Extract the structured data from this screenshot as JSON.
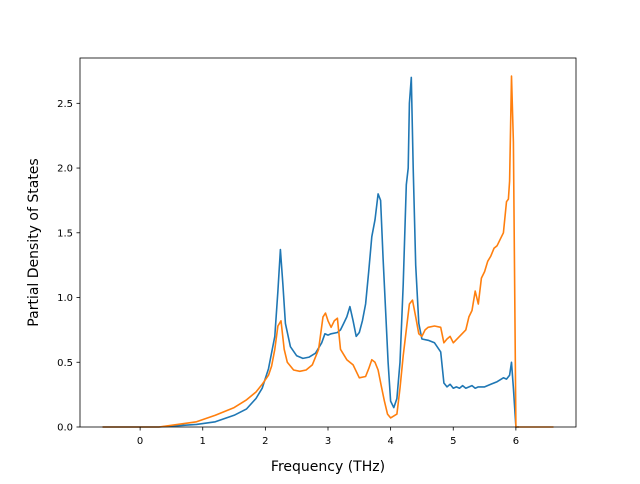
{
  "chart_data": {
    "type": "line",
    "title": "",
    "xlabel": "Frequency (THz)",
    "ylabel": "Partial Density of States",
    "xlim": [
      -0.96,
      6.96
    ],
    "ylim": [
      0.0,
      2.85
    ],
    "xticks": [
      0,
      1,
      2,
      3,
      4,
      5,
      6
    ],
    "xtick_labels": [
      "0",
      "1",
      "2",
      "3",
      "4",
      "5",
      "6"
    ],
    "yticks": [
      0.0,
      0.5,
      1.0,
      1.5,
      2.0,
      2.5
    ],
    "ytick_labels": [
      "0.0",
      "0.5",
      "1.0",
      "1.5",
      "2.0",
      "2.5"
    ],
    "grid": false,
    "legend": null,
    "series": [
      {
        "color": "#1f77b4",
        "points": [
          [
            -0.6,
            0.0
          ],
          [
            0.0,
            0.0
          ],
          [
            0.3,
            0.0
          ],
          [
            0.6,
            0.01
          ],
          [
            0.9,
            0.02
          ],
          [
            1.2,
            0.04
          ],
          [
            1.5,
            0.09
          ],
          [
            1.7,
            0.14
          ],
          [
            1.85,
            0.22
          ],
          [
            1.95,
            0.3
          ],
          [
            2.05,
            0.45
          ],
          [
            2.15,
            0.7
          ],
          [
            2.2,
            1.05
          ],
          [
            2.24,
            1.37
          ],
          [
            2.28,
            1.1
          ],
          [
            2.32,
            0.8
          ],
          [
            2.4,
            0.62
          ],
          [
            2.5,
            0.55
          ],
          [
            2.6,
            0.53
          ],
          [
            2.7,
            0.54
          ],
          [
            2.8,
            0.57
          ],
          [
            2.9,
            0.65
          ],
          [
            2.95,
            0.72
          ],
          [
            3.0,
            0.71
          ],
          [
            3.05,
            0.72
          ],
          [
            3.15,
            0.73
          ],
          [
            3.2,
            0.75
          ],
          [
            3.25,
            0.8
          ],
          [
            3.3,
            0.85
          ],
          [
            3.35,
            0.93
          ],
          [
            3.4,
            0.82
          ],
          [
            3.45,
            0.7
          ],
          [
            3.5,
            0.73
          ],
          [
            3.55,
            0.82
          ],
          [
            3.6,
            0.95
          ],
          [
            3.65,
            1.2
          ],
          [
            3.7,
            1.47
          ],
          [
            3.75,
            1.6
          ],
          [
            3.8,
            1.8
          ],
          [
            3.84,
            1.75
          ],
          [
            3.88,
            1.3
          ],
          [
            3.92,
            0.9
          ],
          [
            3.96,
            0.5
          ],
          [
            4.0,
            0.2
          ],
          [
            4.05,
            0.15
          ],
          [
            4.1,
            0.22
          ],
          [
            4.15,
            0.5
          ],
          [
            4.2,
            1.1
          ],
          [
            4.25,
            1.87
          ],
          [
            4.28,
            2.0
          ],
          [
            4.3,
            2.5
          ],
          [
            4.33,
            2.7
          ],
          [
            4.36,
            2.0
          ],
          [
            4.4,
            1.25
          ],
          [
            4.45,
            0.8
          ],
          [
            4.5,
            0.68
          ],
          [
            4.6,
            0.67
          ],
          [
            4.7,
            0.65
          ],
          [
            4.8,
            0.58
          ],
          [
            4.85,
            0.34
          ],
          [
            4.9,
            0.31
          ],
          [
            4.95,
            0.33
          ],
          [
            5.0,
            0.3
          ],
          [
            5.05,
            0.31
          ],
          [
            5.1,
            0.3
          ],
          [
            5.15,
            0.32
          ],
          [
            5.2,
            0.3
          ],
          [
            5.3,
            0.32
          ],
          [
            5.35,
            0.3
          ],
          [
            5.4,
            0.31
          ],
          [
            5.5,
            0.31
          ],
          [
            5.6,
            0.33
          ],
          [
            5.7,
            0.35
          ],
          [
            5.8,
            0.38
          ],
          [
            5.85,
            0.37
          ],
          [
            5.9,
            0.4
          ],
          [
            5.93,
            0.5
          ],
          [
            5.96,
            0.3
          ],
          [
            6.0,
            0.0
          ],
          [
            6.05,
            0.0
          ]
        ]
      },
      {
        "color": "#ff7f0e",
        "points": [
          [
            -0.6,
            0.0
          ],
          [
            0.0,
            0.0
          ],
          [
            0.3,
            0.0
          ],
          [
            0.6,
            0.02
          ],
          [
            0.9,
            0.04
          ],
          [
            1.2,
            0.09
          ],
          [
            1.5,
            0.15
          ],
          [
            1.7,
            0.21
          ],
          [
            1.85,
            0.27
          ],
          [
            1.95,
            0.33
          ],
          [
            2.05,
            0.4
          ],
          [
            2.1,
            0.47
          ],
          [
            2.15,
            0.6
          ],
          [
            2.2,
            0.78
          ],
          [
            2.25,
            0.82
          ],
          [
            2.3,
            0.6
          ],
          [
            2.35,
            0.5
          ],
          [
            2.45,
            0.44
          ],
          [
            2.55,
            0.43
          ],
          [
            2.65,
            0.44
          ],
          [
            2.75,
            0.48
          ],
          [
            2.85,
            0.6
          ],
          [
            2.92,
            0.85
          ],
          [
            2.96,
            0.88
          ],
          [
            3.0,
            0.82
          ],
          [
            3.05,
            0.77
          ],
          [
            3.1,
            0.82
          ],
          [
            3.15,
            0.84
          ],
          [
            3.2,
            0.6
          ],
          [
            3.3,
            0.52
          ],
          [
            3.4,
            0.48
          ],
          [
            3.5,
            0.38
          ],
          [
            3.6,
            0.39
          ],
          [
            3.65,
            0.45
          ],
          [
            3.7,
            0.52
          ],
          [
            3.75,
            0.5
          ],
          [
            3.8,
            0.44
          ],
          [
            3.85,
            0.32
          ],
          [
            3.9,
            0.2
          ],
          [
            3.95,
            0.1
          ],
          [
            4.0,
            0.07
          ],
          [
            4.1,
            0.1
          ],
          [
            4.15,
            0.3
          ],
          [
            4.2,
            0.55
          ],
          [
            4.25,
            0.75
          ],
          [
            4.3,
            0.95
          ],
          [
            4.35,
            0.98
          ],
          [
            4.4,
            0.85
          ],
          [
            4.45,
            0.72
          ],
          [
            4.5,
            0.7
          ],
          [
            4.55,
            0.75
          ],
          [
            4.6,
            0.77
          ],
          [
            4.7,
            0.78
          ],
          [
            4.8,
            0.77
          ],
          [
            4.85,
            0.65
          ],
          [
            4.9,
            0.68
          ],
          [
            4.95,
            0.7
          ],
          [
            5.0,
            0.65
          ],
          [
            5.1,
            0.7
          ],
          [
            5.2,
            0.75
          ],
          [
            5.25,
            0.85
          ],
          [
            5.3,
            0.9
          ],
          [
            5.35,
            1.05
          ],
          [
            5.4,
            0.95
          ],
          [
            5.45,
            1.15
          ],
          [
            5.5,
            1.2
          ],
          [
            5.55,
            1.28
          ],
          [
            5.6,
            1.32
          ],
          [
            5.65,
            1.38
          ],
          [
            5.7,
            1.4
          ],
          [
            5.75,
            1.45
          ],
          [
            5.8,
            1.5
          ],
          [
            5.85,
            1.74
          ],
          [
            5.88,
            1.76
          ],
          [
            5.9,
            1.9
          ],
          [
            5.93,
            2.71
          ],
          [
            5.96,
            2.2
          ],
          [
            6.0,
            0.0
          ],
          [
            6.6,
            0.0
          ]
        ]
      }
    ]
  }
}
